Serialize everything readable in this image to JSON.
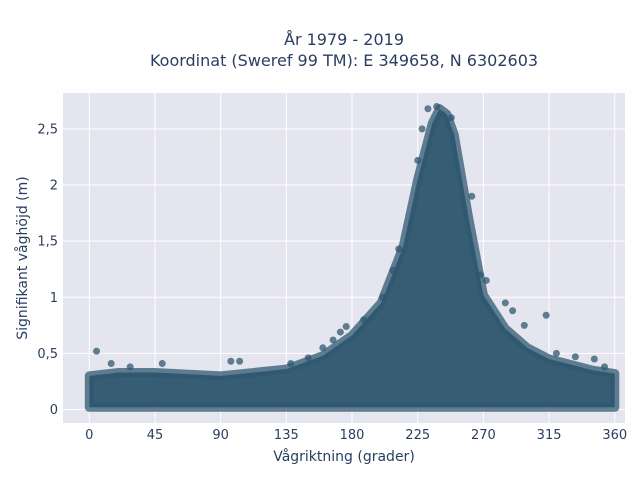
{
  "chart_data": {
    "type": "scatter",
    "title_line1": "År 1979 - 2019",
    "title_line2": "Koordinat (Sweref 99 TM): E 349658, N 6302603",
    "xlabel": "Vågriktning (grader)",
    "ylabel": "Signifikant våghöjd (m)",
    "xlim": [
      -18,
      367
    ],
    "ylim": [
      -0.12,
      2.82
    ],
    "x_ticks": [
      0,
      45,
      90,
      135,
      180,
      225,
      270,
      315,
      360
    ],
    "x_tick_labels": [
      "0",
      "45",
      "90",
      "135",
      "180",
      "225",
      "270",
      "315",
      "360"
    ],
    "y_ticks": [
      0,
      0.5,
      1,
      1.5,
      2,
      2.5
    ],
    "y_tick_labels": [
      "0",
      "0,5",
      "1",
      "1,5",
      "2",
      "2,5"
    ],
    "grid": true,
    "marker_color": "#2f5870",
    "background_color": "#e5e5f0",
    "envelope": {
      "direction_deg": [
        0,
        20,
        45,
        90,
        135,
        160,
        180,
        200,
        215,
        225,
        235,
        240,
        245,
        250,
        260,
        270,
        285,
        300,
        315,
        330,
        345,
        360
      ],
      "upper_height_m": [
        0.3,
        0.33,
        0.33,
        0.3,
        0.36,
        0.48,
        0.66,
        0.95,
        1.45,
        2.05,
        2.55,
        2.68,
        2.63,
        2.45,
        1.7,
        1.02,
        0.72,
        0.55,
        0.45,
        0.4,
        0.35,
        0.32
      ],
      "lower_height_m": [
        0.02,
        0.02,
        0.02,
        0.02,
        0.02,
        0.02,
        0.02,
        0.02,
        0.02,
        0.02,
        0.02,
        0.02,
        0.02,
        0.02,
        0.02,
        0.02,
        0.02,
        0.02,
        0.02,
        0.02,
        0.02,
        0.02
      ]
    },
    "outliers": [
      {
        "x": 5,
        "y": 0.52
      },
      {
        "x": 15,
        "y": 0.41
      },
      {
        "x": 28,
        "y": 0.38
      },
      {
        "x": 50,
        "y": 0.41
      },
      {
        "x": 97,
        "y": 0.43
      },
      {
        "x": 103,
        "y": 0.43
      },
      {
        "x": 138,
        "y": 0.41
      },
      {
        "x": 150,
        "y": 0.46
      },
      {
        "x": 160,
        "y": 0.55
      },
      {
        "x": 167,
        "y": 0.62
      },
      {
        "x": 172,
        "y": 0.69
      },
      {
        "x": 176,
        "y": 0.74
      },
      {
        "x": 188,
        "y": 0.8
      },
      {
        "x": 201,
        "y": 1.0
      },
      {
        "x": 208,
        "y": 1.24
      },
      {
        "x": 212,
        "y": 1.43
      },
      {
        "x": 225,
        "y": 2.22
      },
      {
        "x": 228,
        "y": 2.5
      },
      {
        "x": 232,
        "y": 2.68
      },
      {
        "x": 238,
        "y": 2.7
      },
      {
        "x": 248,
        "y": 2.6
      },
      {
        "x": 262,
        "y": 1.9
      },
      {
        "x": 268,
        "y": 1.2
      },
      {
        "x": 272,
        "y": 1.15
      },
      {
        "x": 285,
        "y": 0.95
      },
      {
        "x": 290,
        "y": 0.88
      },
      {
        "x": 298,
        "y": 0.75
      },
      {
        "x": 313,
        "y": 0.84
      },
      {
        "x": 320,
        "y": 0.5
      },
      {
        "x": 333,
        "y": 0.47
      },
      {
        "x": 346,
        "y": 0.45
      },
      {
        "x": 353,
        "y": 0.38
      }
    ]
  }
}
